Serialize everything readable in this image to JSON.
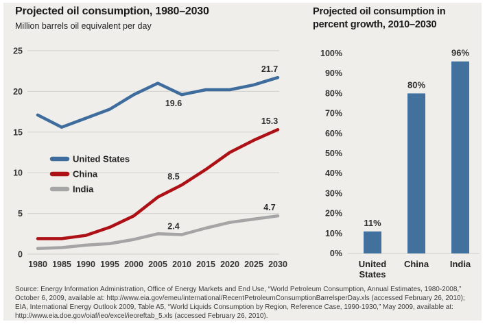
{
  "colors": {
    "panel_bg": "#efeeea",
    "grid": "#d6d5d1",
    "tick_text": "#333333",
    "title_text": "#1a1a1a",
    "annotation_text": "#2f2f2f",
    "legend_text": "#222222",
    "us_blue": "#3e6d9d",
    "china_red": "#ad1116",
    "india_gray": "#a5a5a5",
    "bar_blue": "#41719c"
  },
  "chart_data": [
    {
      "type": "line",
      "title": "Projected oil consumption, 1980–2030",
      "subtitle": "Million barrels oil equivalent per day",
      "x": [
        1980,
        1985,
        1990,
        1995,
        2000,
        2005,
        2010,
        2015,
        2020,
        2025,
        2030
      ],
      "x_tick_labels": [
        "1980",
        "1985",
        "1990",
        "1995",
        "2000",
        "2005",
        "2010",
        "2015",
        "2020",
        "2025",
        "2030"
      ],
      "ylim": [
        0,
        25
      ],
      "yticks": [
        0,
        5,
        10,
        15,
        20,
        25
      ],
      "ytick_labels": [
        "0",
        "5",
        "10",
        "15",
        "20",
        "25"
      ],
      "grid": true,
      "legend_position": "inside-left",
      "series": [
        {
          "name": "United States",
          "color": "#3e6d9d",
          "values": [
            17.1,
            15.6,
            16.7,
            17.8,
            19.6,
            21.0,
            19.6,
            20.2,
            20.2,
            20.8,
            21.7
          ]
        },
        {
          "name": "China",
          "color": "#ad1116",
          "values": [
            1.9,
            1.9,
            2.3,
            3.3,
            4.7,
            7.0,
            8.5,
            10.4,
            12.5,
            14.0,
            15.3
          ]
        },
        {
          "name": "India",
          "color": "#a5a5a5",
          "values": [
            0.7,
            0.8,
            1.1,
            1.3,
            1.8,
            2.5,
            2.4,
            3.2,
            3.9,
            4.3,
            4.7
          ]
        }
      ],
      "annotations": [
        {
          "series": "United States",
          "year": 2010,
          "text": "19.6",
          "placement": "below"
        },
        {
          "series": "United States",
          "year": 2030,
          "text": "21.7",
          "placement": "above"
        },
        {
          "series": "China",
          "year": 2010,
          "text": "8.5",
          "placement": "above"
        },
        {
          "series": "China",
          "year": 2030,
          "text": "15.3",
          "placement": "above"
        },
        {
          "series": "India",
          "year": 2010,
          "text": "2.4",
          "placement": "above"
        },
        {
          "series": "India",
          "year": 2030,
          "text": "4.7",
          "placement": "above"
        }
      ]
    },
    {
      "type": "bar",
      "title": "Projected oil consumption in percent growth, 2010–2030",
      "categories": [
        "United States",
        "China",
        "India"
      ],
      "values": [
        11,
        80,
        96
      ],
      "value_labels": [
        "11%",
        "80%",
        "96%"
      ],
      "ylim": [
        0,
        100
      ],
      "yticks": [
        0,
        10,
        20,
        30,
        40,
        50,
        60,
        70,
        80,
        90,
        100
      ],
      "ytick_labels": [
        "0%",
        "10%",
        "20%",
        "30%",
        "40%",
        "50%",
        "60%",
        "70%",
        "80%",
        "90%",
        "100%"
      ],
      "bar_color": "#41719c",
      "grid": false
    }
  ],
  "source_note": "Source: Energy Information Administration, Office of Energy Markets and End Use, “World Petroleum Consumption, Annual Estimates, 1980-2008,” October 6, 2009, available at: http://www.eia.gov/emeu/international/RecentPetroleumConsumptionBarrelsperDay.xls (accessed February 26, 2010); EIA, International Energy Outlook 2009, Table A5, “World Liquids Consumption by Region, Reference Case, 1990-1930,” May 2009, available at: http://www.eia.doe.gov/oiaf/ieo/excel/ieoreftab_5.xls (accessed February 26, 2010)."
}
